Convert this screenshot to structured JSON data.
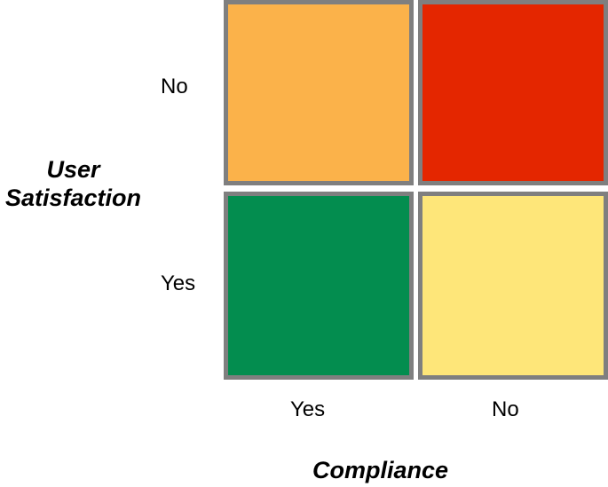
{
  "y_axis": {
    "title_line1": "User",
    "title_line2": "Satisfaction",
    "ticks": [
      "No",
      "Yes"
    ]
  },
  "x_axis": {
    "title": "Compliance",
    "ticks": [
      "Yes",
      "No"
    ]
  },
  "cells": [
    {
      "satisfaction": "No",
      "compliance": "Yes",
      "color": "#fbb24a"
    },
    {
      "satisfaction": "No",
      "compliance": "No",
      "color": "#e42600"
    },
    {
      "satisfaction": "Yes",
      "compliance": "Yes",
      "color": "#038d4f"
    },
    {
      "satisfaction": "Yes",
      "compliance": "No",
      "color": "#fee679"
    }
  ],
  "colors": {
    "border": "#7f7f7f"
  }
}
